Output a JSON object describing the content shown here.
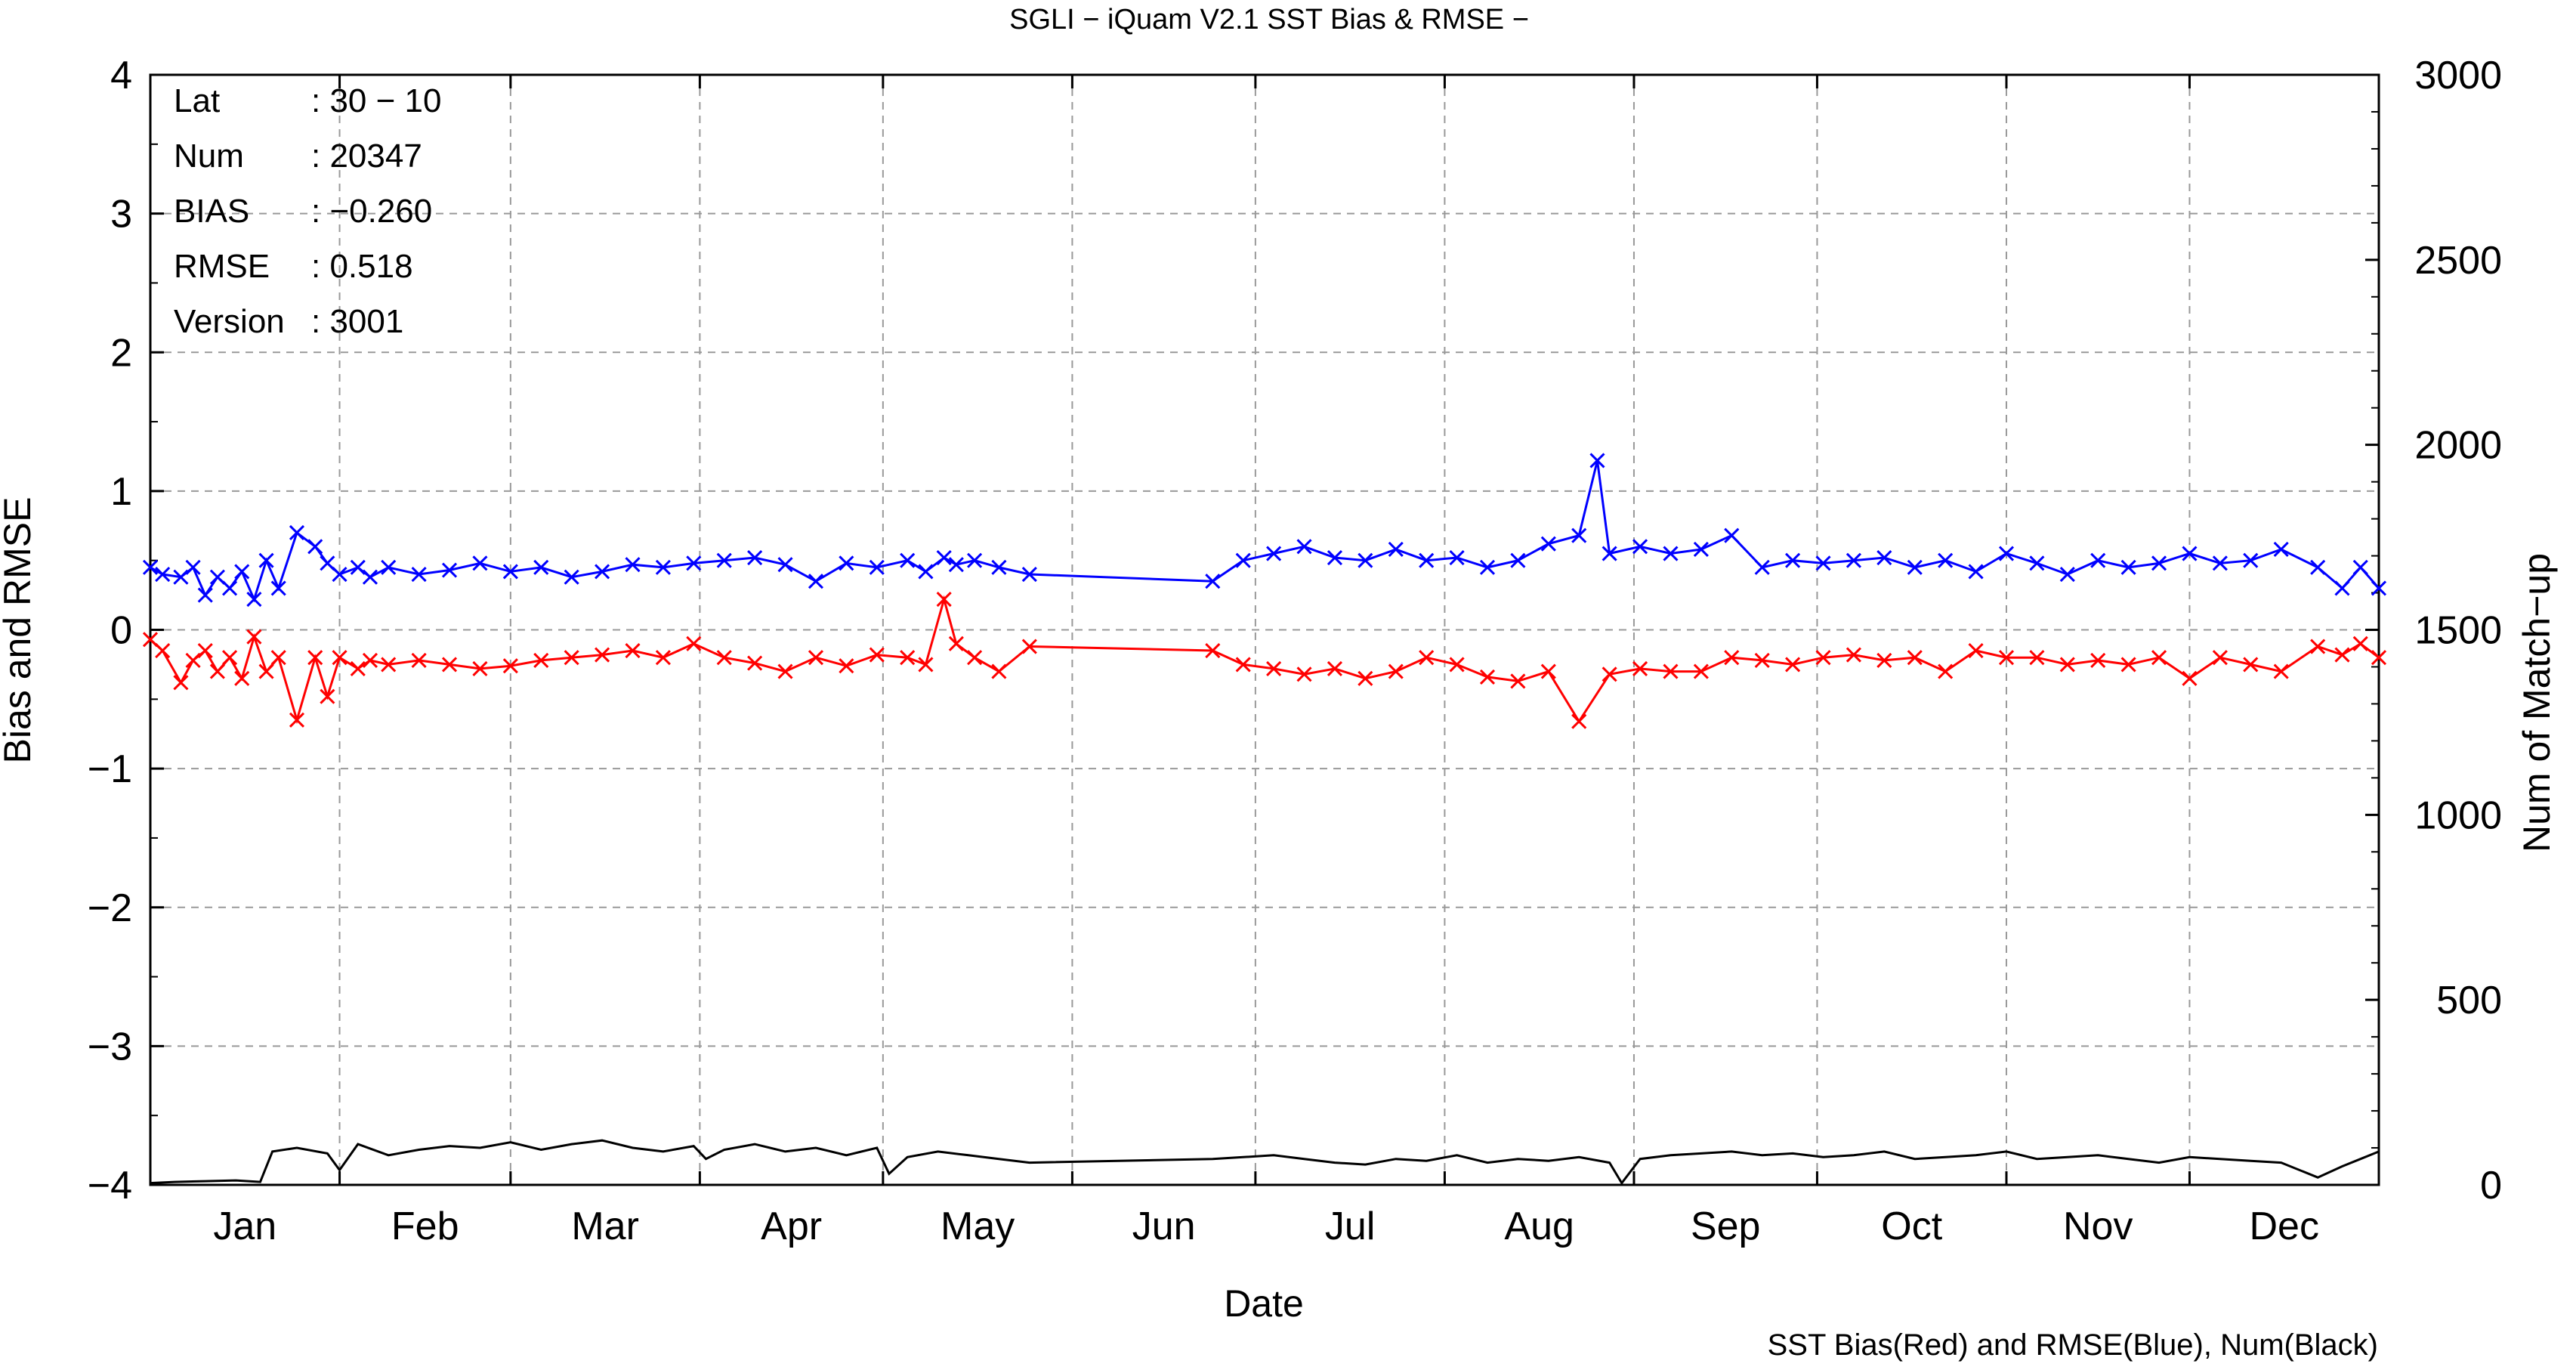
{
  "chart_data": {
    "type": "line",
    "title": "SGLI − iQuam V2.1 SST Bias & RMSE  −",
    "xlabel": "Date",
    "ylabel_left": "Bias and RMSE",
    "ylabel_right": "Num of Match−up",
    "caption": "SST Bias(Red) and RMSE(Blue), Num(Black)",
    "x_tick_labels": [
      "Jan",
      "Feb",
      "Mar",
      "Apr",
      "May",
      "Jun",
      "Jul",
      "Aug",
      "Sep",
      "Oct",
      "Nov",
      "Dec"
    ],
    "y_left_ticks": [
      4,
      3,
      2,
      1,
      0,
      -1,
      -2,
      -3,
      -4
    ],
    "y_left_tick_labels": [
      "4",
      "3",
      "2",
      "1",
      "0",
      "−1",
      "−2",
      "−3",
      "−4"
    ],
    "y_left_lim": [
      -4,
      4
    ],
    "y_right_ticks": [
      3000,
      2500,
      2000,
      1500,
      1000,
      500,
      0
    ],
    "y_right_tick_labels": [
      "3000",
      "2500",
      "2000",
      "1500",
      "1000",
      "500",
      "0"
    ],
    "y_right_lim": [
      0,
      3000
    ],
    "grid": true,
    "info_box": {
      "rows": [
        {
          "key": "Lat",
          "value": ": 30 − 10"
        },
        {
          "key": "Num",
          "value": ": 20347"
        },
        {
          "key": "BIAS",
          "value": ": −0.260"
        },
        {
          "key": "RMSE",
          "value": ": 0.518"
        },
        {
          "key": "Version",
          "value": ": 3001"
        }
      ]
    },
    "colors": {
      "bias": "#ff0000",
      "rmse": "#0000ff",
      "num": "#000000",
      "grid": "#999999"
    },
    "x_range_days": [
      1,
      366
    ],
    "series": [
      {
        "name": "SST Bias",
        "color": "#ff0000",
        "axis": "left",
        "x": [
          1,
          3,
          6,
          8,
          10,
          12,
          14,
          16,
          18,
          20,
          22,
          25,
          28,
          30,
          32,
          35,
          37,
          40,
          45,
          50,
          55,
          60,
          65,
          70,
          75,
          80,
          85,
          90,
          95,
          100,
          105,
          110,
          115,
          120,
          125,
          128,
          131,
          133,
          136,
          140,
          145,
          175,
          180,
          185,
          190,
          195,
          200,
          205,
          210,
          215,
          220,
          225,
          230,
          235,
          240,
          245,
          250,
          255,
          260,
          265,
          270,
          275,
          280,
          285,
          290,
          295,
          300,
          305,
          310,
          315,
          320,
          325,
          330,
          335,
          340,
          345,
          350,
          356,
          360,
          363,
          366
        ],
        "values": [
          -0.07,
          -0.15,
          -0.38,
          -0.22,
          -0.15,
          -0.3,
          -0.2,
          -0.35,
          -0.05,
          -0.3,
          -0.2,
          -0.65,
          -0.2,
          -0.48,
          -0.2,
          -0.28,
          -0.22,
          -0.25,
          -0.22,
          -0.25,
          -0.28,
          -0.26,
          -0.22,
          -0.2,
          -0.18,
          -0.15,
          -0.2,
          -0.1,
          -0.2,
          -0.24,
          -0.3,
          -0.2,
          -0.26,
          -0.18,
          -0.2,
          -0.25,
          0.22,
          -0.1,
          -0.2,
          -0.3,
          -0.12,
          -0.15,
          -0.25,
          -0.28,
          -0.32,
          -0.28,
          -0.35,
          -0.3,
          -0.2,
          -0.25,
          -0.34,
          -0.37,
          -0.3,
          -0.66,
          -0.32,
          -0.28,
          -0.3,
          -0.3,
          -0.2,
          -0.22,
          -0.25,
          -0.2,
          -0.18,
          -0.22,
          -0.2,
          -0.3,
          -0.15,
          -0.2,
          -0.2,
          -0.25,
          -0.22,
          -0.25,
          -0.2,
          -0.35,
          -0.2,
          -0.25,
          -0.3,
          -0.12,
          -0.18,
          -0.1,
          -0.2
        ]
      },
      {
        "name": "RMSE",
        "color": "#0000ff",
        "axis": "left",
        "x": [
          1,
          3,
          6,
          8,
          10,
          12,
          14,
          16,
          18,
          20,
          22,
          25,
          28,
          30,
          32,
          35,
          37,
          40,
          45,
          50,
          55,
          60,
          65,
          70,
          75,
          80,
          85,
          90,
          95,
          100,
          105,
          110,
          115,
          120,
          125,
          128,
          131,
          133,
          136,
          140,
          145,
          175,
          180,
          185,
          190,
          195,
          200,
          205,
          210,
          215,
          220,
          225,
          230,
          235,
          238,
          240,
          245,
          250,
          255,
          260,
          265,
          270,
          275,
          280,
          285,
          290,
          295,
          300,
          305,
          310,
          315,
          320,
          325,
          330,
          335,
          340,
          345,
          350,
          356,
          360,
          363,
          366
        ],
        "values": [
          0.45,
          0.4,
          0.38,
          0.45,
          0.25,
          0.38,
          0.3,
          0.42,
          0.22,
          0.5,
          0.3,
          0.7,
          0.6,
          0.48,
          0.4,
          0.45,
          0.38,
          0.45,
          0.4,
          0.43,
          0.48,
          0.42,
          0.45,
          0.38,
          0.42,
          0.47,
          0.45,
          0.48,
          0.5,
          0.52,
          0.47,
          0.35,
          0.48,
          0.45,
          0.5,
          0.42,
          0.52,
          0.47,
          0.5,
          0.45,
          0.4,
          0.35,
          0.5,
          0.55,
          0.6,
          0.52,
          0.5,
          0.58,
          0.5,
          0.52,
          0.45,
          0.5,
          0.62,
          0.68,
          1.22,
          0.55,
          0.6,
          0.55,
          0.58,
          0.68,
          0.45,
          0.5,
          0.48,
          0.5,
          0.52,
          0.45,
          0.5,
          0.42,
          0.55,
          0.48,
          0.4,
          0.5,
          0.45,
          0.48,
          0.55,
          0.48,
          0.5,
          0.58,
          0.45,
          0.3,
          0.45,
          0.3
        ]
      },
      {
        "name": "Num",
        "color": "#000000",
        "axis": "right",
        "x": [
          1,
          5,
          10,
          15,
          19,
          21,
          25,
          30,
          32,
          35,
          40,
          45,
          50,
          55,
          60,
          65,
          70,
          75,
          80,
          85,
          90,
          92,
          95,
          100,
          105,
          110,
          115,
          120,
          122,
          125,
          130,
          135,
          140,
          145,
          175,
          180,
          185,
          190,
          195,
          200,
          205,
          210,
          215,
          220,
          225,
          230,
          235,
          240,
          242,
          245,
          250,
          255,
          260,
          265,
          270,
          275,
          280,
          285,
          290,
          295,
          300,
          305,
          310,
          315,
          320,
          325,
          330,
          335,
          340,
          345,
          350,
          356,
          360,
          363,
          366
        ],
        "values": [
          5,
          8,
          10,
          12,
          8,
          90,
          100,
          85,
          40,
          110,
          80,
          95,
          105,
          100,
          115,
          95,
          110,
          120,
          100,
          90,
          105,
          70,
          95,
          110,
          90,
          100,
          80,
          100,
          30,
          75,
          90,
          80,
          70,
          60,
          70,
          75,
          80,
          70,
          60,
          55,
          70,
          65,
          80,
          60,
          70,
          65,
          75,
          60,
          5,
          70,
          80,
          85,
          90,
          80,
          85,
          75,
          80,
          90,
          70,
          75,
          80,
          90,
          70,
          75,
          80,
          70,
          60,
          75,
          70,
          65,
          60,
          20,
          50,
          70,
          90
        ]
      }
    ]
  }
}
